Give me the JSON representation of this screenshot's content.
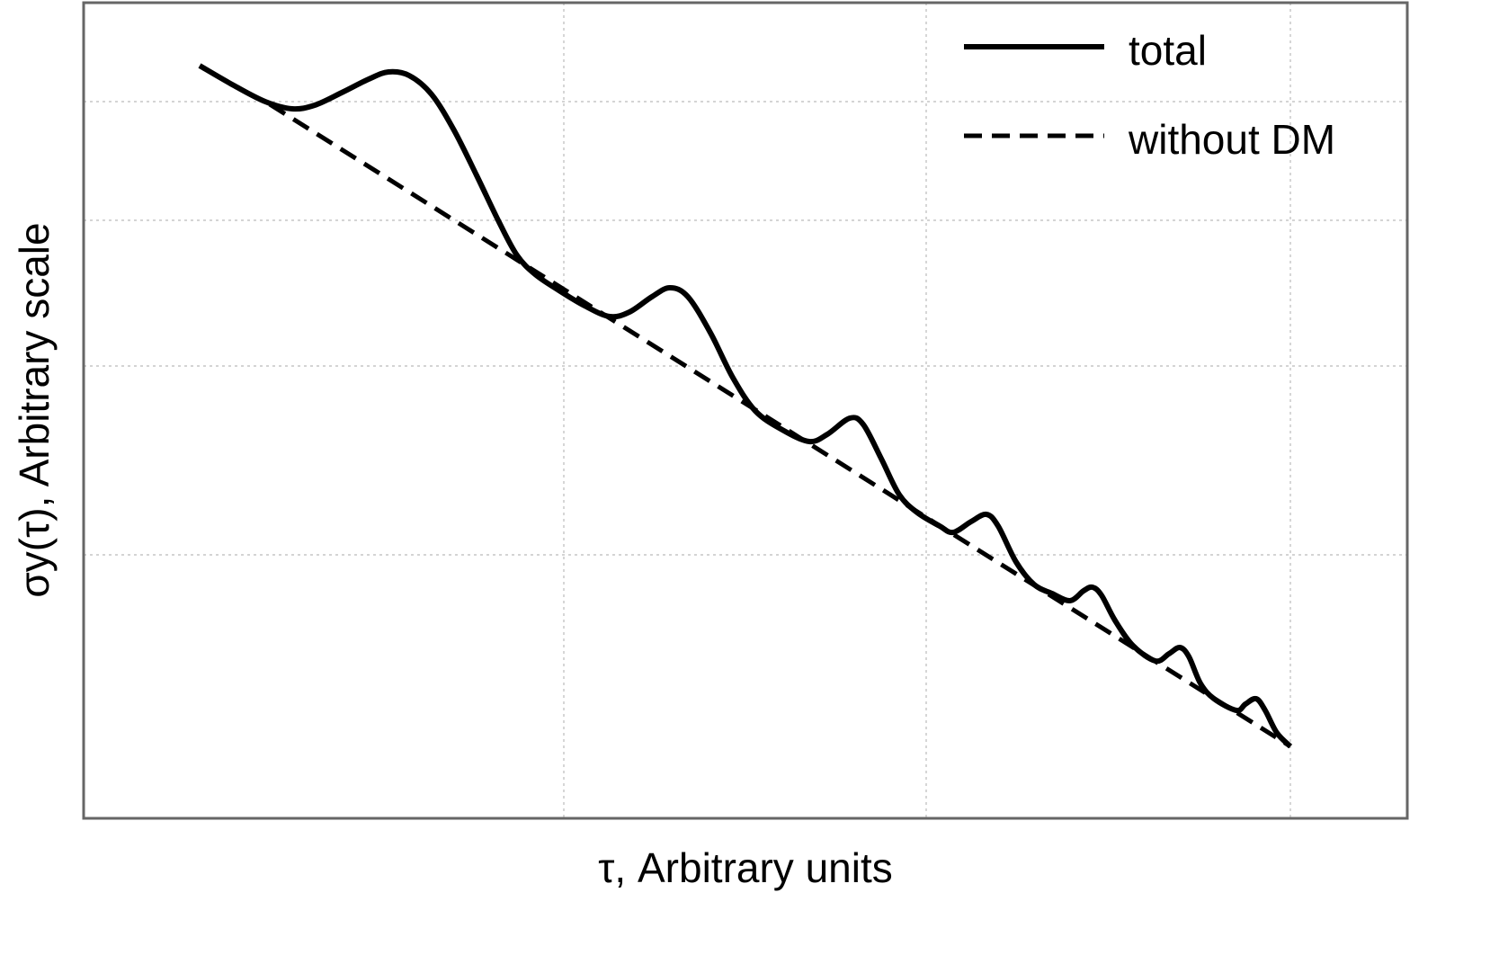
{
  "chart_data": {
    "type": "line",
    "title": "",
    "xlabel": "τ, Arbitrary units",
    "ylabel": "σy(τ), Arbitrary scale",
    "xlim": [
      0,
      14.72
    ],
    "ylim": [
      0,
      9.07
    ],
    "x_ticks_labeled": false,
    "y_ticks_labeled": false,
    "grid": true,
    "grid_x": [
      5.34,
      9.37,
      13.42
    ],
    "grid_y": [
      7.97,
      6.65,
      5.03,
      2.93
    ],
    "legend_position": "top-right",
    "series": [
      {
        "name": "total",
        "style": "solid",
        "color": "#000000",
        "x": [
          1.29,
          1.67,
          2.02,
          2.32,
          2.57,
          2.87,
          3.17,
          3.39,
          3.62,
          3.87,
          4.12,
          4.37,
          4.62,
          4.82,
          5.02,
          5.27,
          5.57,
          5.85,
          6.07,
          6.32,
          6.52,
          6.72,
          6.97,
          7.22,
          7.47,
          7.77,
          8.07,
          8.27,
          8.52,
          8.67,
          8.87,
          9.07,
          9.27,
          9.52,
          9.67,
          9.87,
          10.04,
          10.17,
          10.37,
          10.57,
          10.77,
          10.97,
          11.12,
          11.22,
          11.32,
          11.47,
          11.67,
          11.92,
          12.07,
          12.19,
          12.29,
          12.42,
          12.57,
          12.82,
          12.92,
          13.04,
          13.14,
          13.27,
          13.42
        ],
        "y": [
          8.37,
          8.15,
          7.97,
          7.89,
          7.93,
          8.07,
          8.22,
          8.3,
          8.26,
          8.05,
          7.65,
          7.15,
          6.63,
          6.26,
          6.05,
          5.88,
          5.7,
          5.58,
          5.63,
          5.8,
          5.9,
          5.8,
          5.4,
          4.9,
          4.53,
          4.32,
          4.19,
          4.27,
          4.45,
          4.38,
          4.0,
          3.6,
          3.4,
          3.25,
          3.18,
          3.3,
          3.38,
          3.25,
          2.85,
          2.6,
          2.5,
          2.42,
          2.53,
          2.57,
          2.48,
          2.2,
          1.92,
          1.75,
          1.83,
          1.9,
          1.8,
          1.5,
          1.33,
          1.2,
          1.27,
          1.33,
          1.2,
          0.95,
          0.8
        ]
      },
      {
        "name": "without DM",
        "style": "dashed",
        "color": "#000000",
        "x": [
          2.07,
          13.42
        ],
        "y": [
          7.94,
          0.8
        ]
      }
    ]
  }
}
